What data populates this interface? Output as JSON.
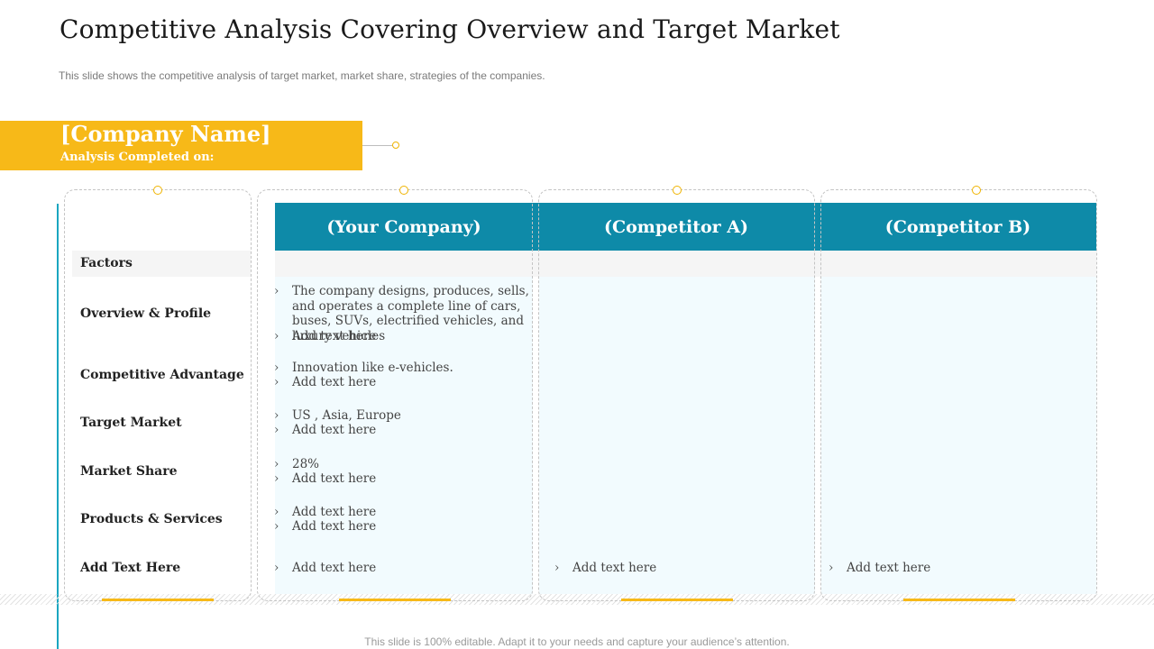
{
  "slide": {
    "title": "Competitive Analysis Covering Overview and Target Market",
    "subtitle": "This slide shows the competitive analysis of target market, market share, strategies of the companies.",
    "footer": "This slide is 100% editable. Adapt it to your needs and capture your audience’s attention."
  },
  "banner": {
    "company_name": "[Company Name]",
    "analysis_completed": "Analysis Completed on:"
  },
  "columns": {
    "your_company": "(Your Company)",
    "competitor_a": "(Competitor A)",
    "competitor_b": "(Competitor B)"
  },
  "factors": {
    "header": "Factors",
    "overview": "Overview & Profile",
    "advantage": "Competitive Advantage",
    "target": "Target Market",
    "share": "Market Share",
    "products": "Products & Services",
    "addtext": "Add Text Here"
  },
  "your_company": {
    "overview_1": "The company designs, produces, sells, and operates a complete line of cars, buses, SUVs, electrified vehicles, and luxury vehicles",
    "overview_2": "Add text here",
    "advantage_1": "Innovation like e-vehicles.",
    "advantage_2": "Add text here",
    "target_1": "US , Asia, Europe",
    "target_2": "Add text here",
    "share_1": "28%",
    "share_2": "Add text here",
    "products_1": "Add text here",
    "products_2": "Add text here",
    "addtext_1": "Add text here"
  },
  "competitor_a": {
    "addtext_1": "Add text here"
  },
  "competitor_b": {
    "addtext_1": "Add text here"
  },
  "colors": {
    "accent_yellow": "#f7b918",
    "header_teal": "#0e8aa8",
    "side_teal": "#1aa6c0"
  }
}
